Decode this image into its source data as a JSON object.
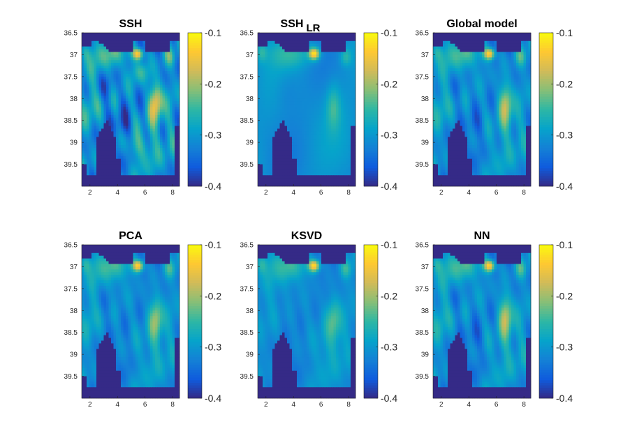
{
  "chart_data": [
    {
      "type": "heatmap",
      "title": "SSH",
      "title_sub": "",
      "field": "ssh",
      "xticks": [
        "2",
        "4",
        "6",
        "8"
      ],
      "yticks": [
        "36.5",
        "37",
        "37.5",
        "38",
        "38.5",
        "39",
        "39.5"
      ],
      "xlim": [
        1.4,
        8.5
      ],
      "ylim": [
        36.5,
        40.0
      ],
      "colorbar": {
        "ticks": [
          "-0.1",
          "-0.2",
          "-0.3",
          "-0.4"
        ],
        "clim": [
          -0.4,
          -0.1
        ]
      }
    },
    {
      "type": "heatmap",
      "title": "SSH",
      "title_sub": "LR",
      "field": "ssh_lr",
      "xticks": [
        "2",
        "4",
        "6",
        "8"
      ],
      "yticks": [
        "36.5",
        "37",
        "37.5",
        "38",
        "38.5",
        "39",
        "39.5"
      ],
      "xlim": [
        1.4,
        8.5
      ],
      "ylim": [
        36.5,
        40.0
      ],
      "colorbar": {
        "ticks": [
          "-0.1",
          "-0.2",
          "-0.3",
          "-0.4"
        ],
        "clim": [
          -0.4,
          -0.1
        ]
      }
    },
    {
      "type": "heatmap",
      "title": "Global model",
      "title_sub": "",
      "field": "global_model",
      "xticks": [
        "2",
        "4",
        "6",
        "8"
      ],
      "yticks": [
        "36.5",
        "37",
        "37.5",
        "38",
        "38.5",
        "39",
        "39.5"
      ],
      "xlim": [
        1.4,
        8.5
      ],
      "ylim": [
        36.5,
        40.0
      ],
      "colorbar": {
        "ticks": [
          "-0.1",
          "-0.2",
          "-0.3",
          "-0.4"
        ],
        "clim": [
          -0.4,
          -0.1
        ]
      }
    },
    {
      "type": "heatmap",
      "title": "PCA",
      "title_sub": "",
      "field": "pca",
      "xticks": [
        "2",
        "4",
        "6",
        "8"
      ],
      "yticks": [
        "36.5",
        "37",
        "37.5",
        "38",
        "38.5",
        "39",
        "39.5"
      ],
      "xlim": [
        1.4,
        8.5
      ],
      "ylim": [
        36.5,
        40.0
      ],
      "colorbar": {
        "ticks": [
          "-0.1",
          "-0.2",
          "-0.3",
          "-0.4"
        ],
        "clim": [
          -0.4,
          -0.1
        ]
      }
    },
    {
      "type": "heatmap",
      "title": "KSVD",
      "title_sub": "",
      "field": "ksvd",
      "xticks": [
        "2",
        "4",
        "6",
        "8"
      ],
      "yticks": [
        "36.5",
        "37",
        "37.5",
        "38",
        "38.5",
        "39",
        "39.5"
      ],
      "xlim": [
        1.4,
        8.5
      ],
      "ylim": [
        36.5,
        40.0
      ],
      "colorbar": {
        "ticks": [
          "-0.1",
          "-0.2",
          "-0.3",
          "-0.4"
        ],
        "clim": [
          -0.4,
          -0.1
        ]
      }
    },
    {
      "type": "heatmap",
      "title": "NN",
      "title_sub": "",
      "field": "nn",
      "xticks": [
        "2",
        "4",
        "6",
        "8"
      ],
      "yticks": [
        "36.5",
        "37",
        "37.5",
        "38",
        "38.5",
        "39",
        "39.5"
      ],
      "xlim": [
        1.4,
        8.5
      ],
      "ylim": [
        36.5,
        40.0
      ],
      "colorbar": {
        "ticks": [
          "-0.1",
          "-0.2",
          "-0.3",
          "-0.4"
        ],
        "clim": [
          -0.4,
          -0.1
        ]
      }
    }
  ],
  "colors": {
    "land": "#352a87",
    "colormap": [
      "#352a87",
      "#0f5cdd",
      "#1481d6",
      "#06a4ca",
      "#2eb7a4",
      "#87bf77",
      "#d1bb59",
      "#fec832",
      "#f9fb0e"
    ]
  }
}
